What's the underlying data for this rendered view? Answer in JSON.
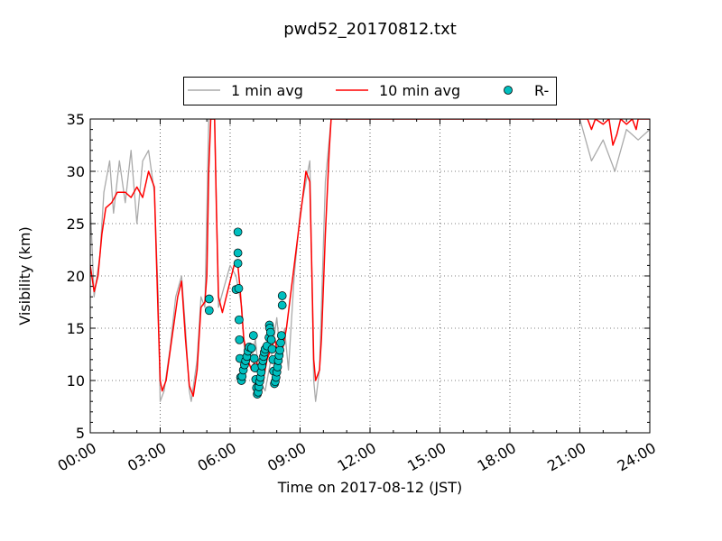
{
  "chart_data": {
    "type": "line",
    "title": "pwd52_20170812.txt",
    "xlabel": "Time on 2017-08-12 (JST)",
    "ylabel": "Visibility (km)",
    "xlim": [
      "00:00",
      "24:00"
    ],
    "ylim": [
      5,
      35
    ],
    "x_ticks": [
      "00:00",
      "03:00",
      "06:00",
      "09:00",
      "12:00",
      "15:00",
      "18:00",
      "21:00",
      "24:00"
    ],
    "y_ticks": [
      5,
      10,
      15,
      20,
      25,
      30,
      35
    ],
    "grid": true,
    "legend_position": "top-center, outside plot",
    "series": [
      {
        "name": "1 min avg",
        "kind": "line",
        "color": "#aaaaaa",
        "points": [
          [
            "00:00",
            27
          ],
          [
            "00:10",
            18
          ],
          [
            "00:25",
            22
          ],
          [
            "00:35",
            28
          ],
          [
            "00:50",
            31
          ],
          [
            "01:00",
            26
          ],
          [
            "01:15",
            31
          ],
          [
            "01:30",
            27
          ],
          [
            "01:45",
            32
          ],
          [
            "02:00",
            25
          ],
          [
            "02:15",
            31
          ],
          [
            "02:30",
            32
          ],
          [
            "02:45",
            28
          ],
          [
            "02:55",
            18
          ],
          [
            "03:00",
            8
          ],
          [
            "03:10",
            9
          ],
          [
            "03:25",
            13
          ],
          [
            "03:40",
            18
          ],
          [
            "03:55",
            20
          ],
          [
            "04:05",
            15
          ],
          [
            "04:15",
            9
          ],
          [
            "04:20",
            8
          ],
          [
            "04:35",
            12
          ],
          [
            "04:45",
            18
          ],
          [
            "04:55",
            17
          ],
          [
            "05:05",
            35
          ],
          [
            "05:20",
            35
          ],
          [
            "05:30",
            17
          ],
          [
            "05:45",
            19
          ],
          [
            "06:00",
            21
          ],
          [
            "06:15",
            20
          ],
          [
            "06:30",
            17
          ],
          [
            "06:40",
            11
          ],
          [
            "06:45",
            12
          ],
          [
            "06:55",
            12
          ],
          [
            "07:05",
            14
          ],
          [
            "07:15",
            10
          ],
          [
            "07:30",
            9
          ],
          [
            "07:45",
            12
          ],
          [
            "08:00",
            16
          ],
          [
            "08:10",
            12
          ],
          [
            "08:20",
            15
          ],
          [
            "08:30",
            11
          ],
          [
            "08:45",
            20
          ],
          [
            "09:00",
            26
          ],
          [
            "09:15",
            29
          ],
          [
            "09:25",
            31
          ],
          [
            "09:35",
            10
          ],
          [
            "09:40",
            8
          ],
          [
            "09:50",
            11
          ],
          [
            "10:05",
            29
          ],
          [
            "10:20",
            35
          ],
          [
            "10:45",
            35
          ],
          [
            "11:00",
            35
          ],
          [
            "12:00",
            35
          ],
          [
            "13:00",
            35
          ],
          [
            "14:00",
            35
          ],
          [
            "15:00",
            35
          ],
          [
            "16:00",
            35
          ],
          [
            "17:00",
            35
          ],
          [
            "18:00",
            35
          ],
          [
            "19:00",
            35
          ],
          [
            "20:00",
            35
          ],
          [
            "21:00",
            35
          ],
          [
            "21:30",
            31
          ],
          [
            "22:00",
            33
          ],
          [
            "22:30",
            30
          ],
          [
            "23:00",
            34
          ],
          [
            "23:30",
            33
          ],
          [
            "24:00",
            34
          ]
        ]
      },
      {
        "name": "10 min avg",
        "kind": "line",
        "color": "#ff0000",
        "points": [
          [
            "00:00",
            21
          ],
          [
            "00:10",
            18.5
          ],
          [
            "00:20",
            20
          ],
          [
            "00:30",
            24
          ],
          [
            "00:40",
            26.5
          ],
          [
            "00:55",
            27
          ],
          [
            "01:10",
            28
          ],
          [
            "01:30",
            28
          ],
          [
            "01:45",
            27.5
          ],
          [
            "02:00",
            28.5
          ],
          [
            "02:15",
            27.5
          ],
          [
            "02:30",
            30
          ],
          [
            "02:45",
            28.5
          ],
          [
            "02:50",
            22
          ],
          [
            "02:55",
            16
          ],
          [
            "03:00",
            10
          ],
          [
            "03:05",
            9
          ],
          [
            "03:15",
            10
          ],
          [
            "03:30",
            14
          ],
          [
            "03:45",
            18
          ],
          [
            "03:55",
            19.5
          ],
          [
            "04:05",
            14
          ],
          [
            "04:15",
            9.5
          ],
          [
            "04:25",
            8.5
          ],
          [
            "04:35",
            11
          ],
          [
            "04:45",
            17
          ],
          [
            "04:55",
            17.5
          ],
          [
            "05:00",
            20
          ],
          [
            "05:05",
            30
          ],
          [
            "05:10",
            35
          ],
          [
            "05:20",
            35
          ],
          [
            "05:25",
            26
          ],
          [
            "05:30",
            18
          ],
          [
            "05:40",
            16.5
          ],
          [
            "05:50",
            18
          ],
          [
            "06:00",
            19.5
          ],
          [
            "06:10",
            21
          ],
          [
            "06:20",
            21
          ],
          [
            "06:25",
            19
          ],
          [
            "06:35",
            14
          ],
          [
            "06:45",
            12
          ],
          [
            "06:55",
            11
          ],
          [
            "07:05",
            12
          ],
          [
            "07:15",
            11
          ],
          [
            "07:25",
            10
          ],
          [
            "07:35",
            12
          ],
          [
            "07:45",
            13
          ],
          [
            "07:55",
            14
          ],
          [
            "08:05",
            12
          ],
          [
            "08:15",
            13
          ],
          [
            "08:25",
            15
          ],
          [
            "08:35",
            18
          ],
          [
            "08:45",
            21
          ],
          [
            "08:55",
            24
          ],
          [
            "09:05",
            27
          ],
          [
            "09:15",
            30
          ],
          [
            "09:25",
            29
          ],
          [
            "09:30",
            21
          ],
          [
            "09:35",
            12
          ],
          [
            "09:40",
            10
          ],
          [
            "09:50",
            11
          ],
          [
            "09:55",
            14
          ],
          [
            "10:05",
            24
          ],
          [
            "10:15",
            32
          ],
          [
            "10:20",
            35
          ],
          [
            "21:20",
            35
          ],
          [
            "21:30",
            34
          ],
          [
            "21:40",
            35
          ],
          [
            "22:00",
            34.5
          ],
          [
            "22:15",
            35
          ],
          [
            "22:25",
            32.5
          ],
          [
            "22:35",
            33.5
          ],
          [
            "22:45",
            35
          ],
          [
            "23:00",
            34.5
          ],
          [
            "23:15",
            35
          ],
          [
            "23:25",
            34
          ],
          [
            "23:30",
            35
          ],
          [
            "24:00",
            35
          ]
        ]
      },
      {
        "name": "R-",
        "kind": "markers",
        "color": "#00bfbf",
        "points": [
          [
            "05:06",
            17.8
          ],
          [
            "05:06",
            16.7
          ],
          [
            "06:15",
            18.7
          ],
          [
            "06:20",
            24.2
          ],
          [
            "06:20",
            22.2
          ],
          [
            "06:20",
            21.2
          ],
          [
            "06:22",
            18.8
          ],
          [
            "06:23",
            15.8
          ],
          [
            "06:24",
            13.9
          ],
          [
            "06:25",
            12.1
          ],
          [
            "06:27",
            10.3
          ],
          [
            "06:29",
            10.0
          ],
          [
            "06:31",
            10.4
          ],
          [
            "06:34",
            11.0
          ],
          [
            "06:37",
            11.5
          ],
          [
            "06:40",
            11.9
          ],
          [
            "06:43",
            12.3
          ],
          [
            "06:46",
            12.8
          ],
          [
            "06:49",
            13.2
          ],
          [
            "06:55",
            13.1
          ],
          [
            "07:00",
            14.3
          ],
          [
            "07:02",
            12.1
          ],
          [
            "07:04",
            11.2
          ],
          [
            "07:06",
            10.1
          ],
          [
            "07:08",
            9.3
          ],
          [
            "07:10",
            8.7
          ],
          [
            "07:12",
            8.9
          ],
          [
            "07:14",
            9.4
          ],
          [
            "07:16",
            9.9
          ],
          [
            "07:18",
            10.3
          ],
          [
            "07:20",
            10.8
          ],
          [
            "07:22",
            11.4
          ],
          [
            "07:24",
            11.9
          ],
          [
            "07:26",
            12.3
          ],
          [
            "07:28",
            12.7
          ],
          [
            "07:30",
            13.0
          ],
          [
            "07:35",
            13.3
          ],
          [
            "07:40",
            14.1
          ],
          [
            "07:41",
            15.3
          ],
          [
            "07:42",
            15.0
          ],
          [
            "07:44",
            14.6
          ],
          [
            "07:46",
            13.9
          ],
          [
            "07:48",
            13.0
          ],
          [
            "07:50",
            12.0
          ],
          [
            "07:52",
            10.9
          ],
          [
            "07:54",
            9.7
          ],
          [
            "07:56",
            9.9
          ],
          [
            "07:58",
            10.3
          ],
          [
            "08:00",
            10.8
          ],
          [
            "08:02",
            11.3
          ],
          [
            "08:04",
            11.9
          ],
          [
            "08:06",
            12.4
          ],
          [
            "08:08",
            12.9
          ],
          [
            "08:10",
            13.6
          ],
          [
            "08:12",
            14.3
          ],
          [
            "08:14",
            18.1
          ],
          [
            "08:14",
            17.2
          ]
        ]
      }
    ]
  }
}
